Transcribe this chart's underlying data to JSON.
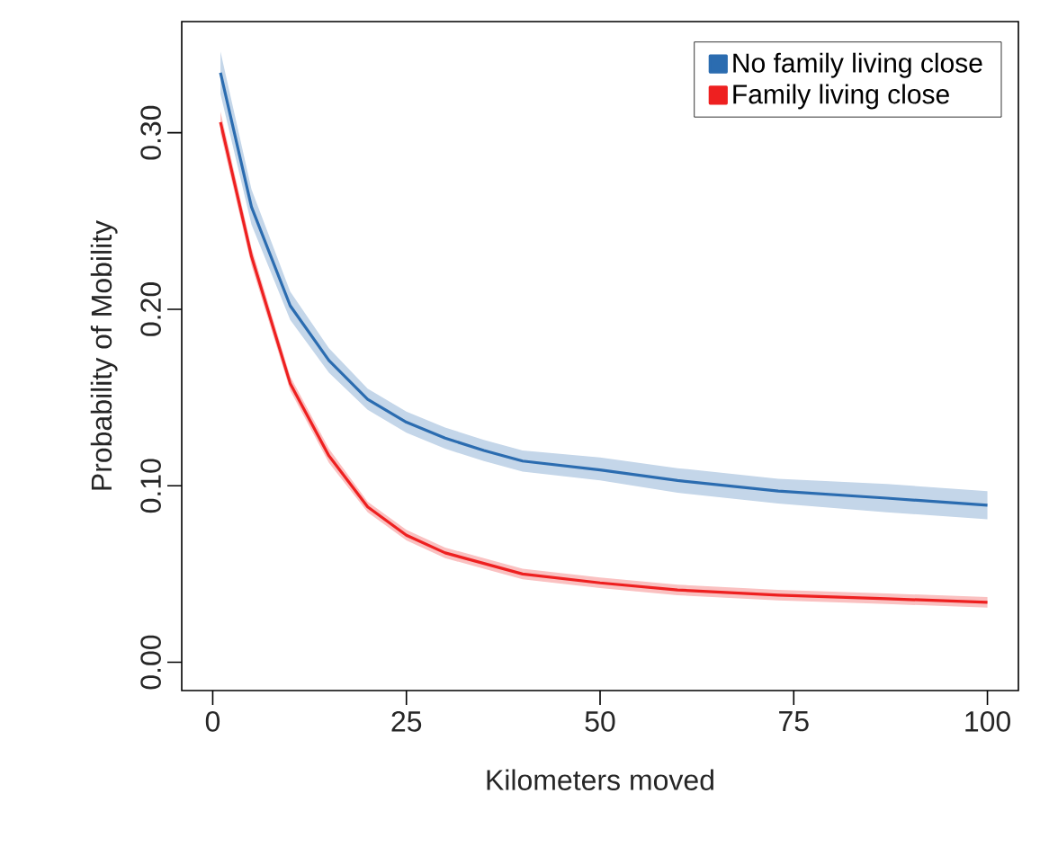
{
  "chart_data": {
    "type": "line",
    "xlabel": "Kilometers moved",
    "ylabel": "Probability of Mobility",
    "xlim": [
      -4,
      104
    ],
    "ylim": [
      -0.016,
      0.363
    ],
    "xticks": [
      0,
      25,
      50,
      75,
      100
    ],
    "yticks": [
      {
        "value": 0,
        "label": "0.00"
      },
      {
        "value": 0.1,
        "label": "0.10"
      },
      {
        "value": 0.2,
        "label": "0.20"
      },
      {
        "value": 0.3,
        "label": "0.30"
      }
    ],
    "legend": "top right",
    "grid": false,
    "marker": "none",
    "line_style": "solid",
    "series": [
      {
        "name": "No family living close",
        "color": "#2b6cb0",
        "x": [
          1,
          5,
          10,
          15,
          20,
          25,
          30,
          35,
          40,
          50,
          60,
          73,
          87,
          100
        ],
        "values": [
          0.334,
          0.258,
          0.202,
          0.171,
          0.149,
          0.136,
          0.127,
          0.12,
          0.114,
          0.109,
          0.103,
          0.097,
          0.093,
          0.089
        ],
        "lower": [
          0.322,
          0.248,
          0.194,
          0.164,
          0.143,
          0.13,
          0.121,
          0.114,
          0.108,
          0.103,
          0.096,
          0.09,
          0.085,
          0.081
        ],
        "upper": [
          0.346,
          0.268,
          0.21,
          0.178,
          0.155,
          0.142,
          0.133,
          0.126,
          0.12,
          0.116,
          0.11,
          0.104,
          0.101,
          0.097
        ]
      },
      {
        "name": "Family living close",
        "color": "#ee2020",
        "x": [
          1,
          5,
          10,
          15,
          20,
          25,
          30,
          35,
          40,
          50,
          60,
          73,
          87,
          100
        ],
        "values": [
          0.306,
          0.23,
          0.158,
          0.117,
          0.088,
          0.072,
          0.062,
          0.056,
          0.05,
          0.045,
          0.041,
          0.038,
          0.036,
          0.034
        ],
        "lower": [
          0.3,
          0.225,
          0.154,
          0.113,
          0.085,
          0.069,
          0.059,
          0.053,
          0.047,
          0.042,
          0.038,
          0.035,
          0.033,
          0.031
        ],
        "upper": [
          0.312,
          0.235,
          0.162,
          0.121,
          0.091,
          0.075,
          0.065,
          0.059,
          0.053,
          0.048,
          0.044,
          0.041,
          0.039,
          0.037
        ]
      }
    ]
  }
}
